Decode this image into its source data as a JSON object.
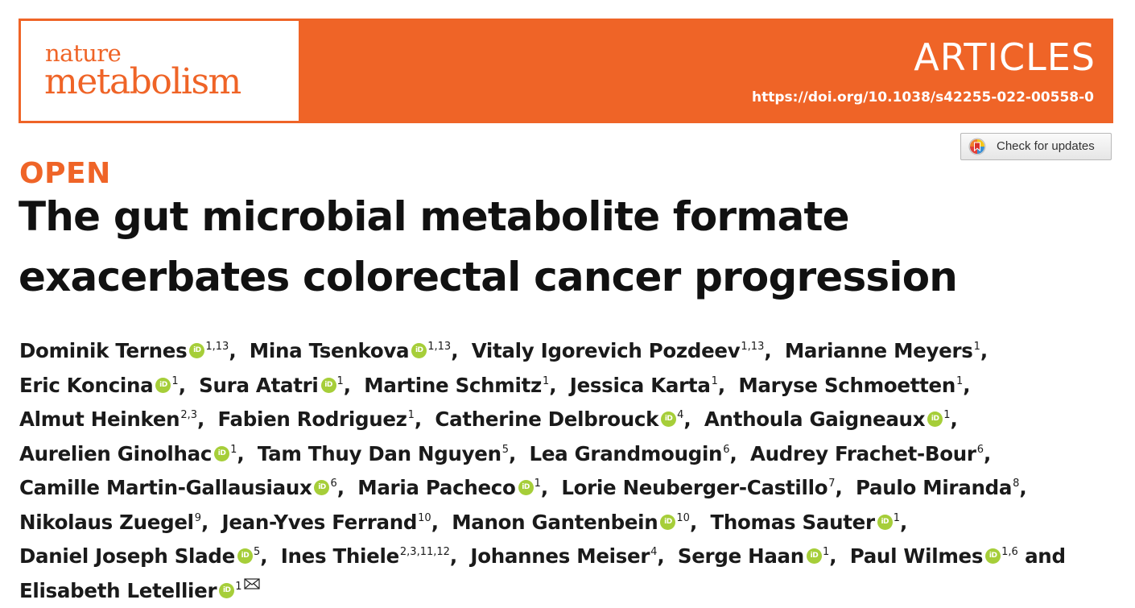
{
  "journal": {
    "name_top": "nature",
    "name_bottom": "metabolism"
  },
  "section": "ARTICLES",
  "doi": "https://doi.org/10.1038/s42255-022-00558-0",
  "updates_button": {
    "label": "Check for updates",
    "icon": "crossmark-icon"
  },
  "access_label": "OPEN",
  "title": "The gut microbial metabolite formate exacerbates colorectal cancer progression",
  "orcid_icon_text": "iD",
  "colors": {
    "brand": "#ef6427",
    "orcid": "#a6ce39"
  },
  "authors": [
    {
      "name": "Dominik Ternes",
      "orcid": true,
      "aff": "1,13",
      "sep": ", "
    },
    {
      "name": "Mina Tsenkova",
      "orcid": true,
      "aff": "1,13",
      "sep": ", "
    },
    {
      "name": "Vitaly Igorevich Pozdeev",
      "orcid": false,
      "aff": "1,13",
      "sep": ", "
    },
    {
      "name": "Marianne Meyers",
      "orcid": false,
      "aff": "1",
      "sep": ", "
    },
    {
      "name": "Eric Koncina",
      "orcid": true,
      "aff": "1",
      "sep": ", "
    },
    {
      "name": "Sura Atatri",
      "orcid": true,
      "aff": "1",
      "sep": ", "
    },
    {
      "name": "Martine Schmitz",
      "orcid": false,
      "aff": "1",
      "sep": ", "
    },
    {
      "name": "Jessica Karta",
      "orcid": false,
      "aff": "1",
      "sep": ", "
    },
    {
      "name": "Maryse Schmoetten",
      "orcid": false,
      "aff": "1",
      "sep": ", "
    },
    {
      "name": "Almut Heinken",
      "orcid": false,
      "aff": "2,3",
      "sep": ", "
    },
    {
      "name": "Fabien Rodriguez",
      "orcid": false,
      "aff": "1",
      "sep": ", "
    },
    {
      "name": "Catherine Delbrouck",
      "orcid": true,
      "aff": "4",
      "sep": ", "
    },
    {
      "name": "Anthoula Gaigneaux",
      "orcid": true,
      "aff": "1",
      "sep": ", "
    },
    {
      "name": "Aurelien Ginolhac",
      "orcid": true,
      "aff": "1",
      "sep": ", "
    },
    {
      "name": "Tam Thuy Dan Nguyen",
      "orcid": false,
      "aff": "5",
      "sep": ", "
    },
    {
      "name": "Lea Grandmougin",
      "orcid": false,
      "aff": "6",
      "sep": ", "
    },
    {
      "name": "Audrey Frachet-Bour",
      "orcid": false,
      "aff": "6",
      "sep": ", "
    },
    {
      "name": "Camille Martin-Gallausiaux",
      "orcid": true,
      "aff": "6",
      "sep": ", "
    },
    {
      "name": "Maria Pacheco",
      "orcid": true,
      "aff": "1",
      "sep": ", "
    },
    {
      "name": "Lorie Neuberger-Castillo",
      "orcid": false,
      "aff": "7",
      "sep": ", "
    },
    {
      "name": "Paulo Miranda",
      "orcid": false,
      "aff": "8",
      "sep": ", "
    },
    {
      "name": "Nikolaus Zuegel",
      "orcid": false,
      "aff": "9",
      "sep": ", "
    },
    {
      "name": "Jean-Yves Ferrand",
      "orcid": false,
      "aff": "10",
      "sep": ", "
    },
    {
      "name": "Manon Gantenbein",
      "orcid": true,
      "aff": "10",
      "sep": ", "
    },
    {
      "name": "Thomas Sauter",
      "orcid": true,
      "aff": "1",
      "sep": ", "
    },
    {
      "name": "Daniel Joseph Slade",
      "orcid": true,
      "aff": "5",
      "sep": ", "
    },
    {
      "name": "Ines Thiele",
      "orcid": false,
      "aff": "2,3,11,12",
      "sep": ", "
    },
    {
      "name": "Johannes Meiser",
      "orcid": false,
      "aff": "4",
      "sep": ", "
    },
    {
      "name": "Serge Haan",
      "orcid": true,
      "aff": "1",
      "sep": ", "
    },
    {
      "name": "Paul Wilmes",
      "orcid": true,
      "aff": "1,6",
      "sep": " and "
    },
    {
      "name": "Elisabeth Letellier",
      "orcid": true,
      "aff": "1",
      "sep": "",
      "corresponding": true,
      "contact_icon": "envelope-icon"
    }
  ]
}
